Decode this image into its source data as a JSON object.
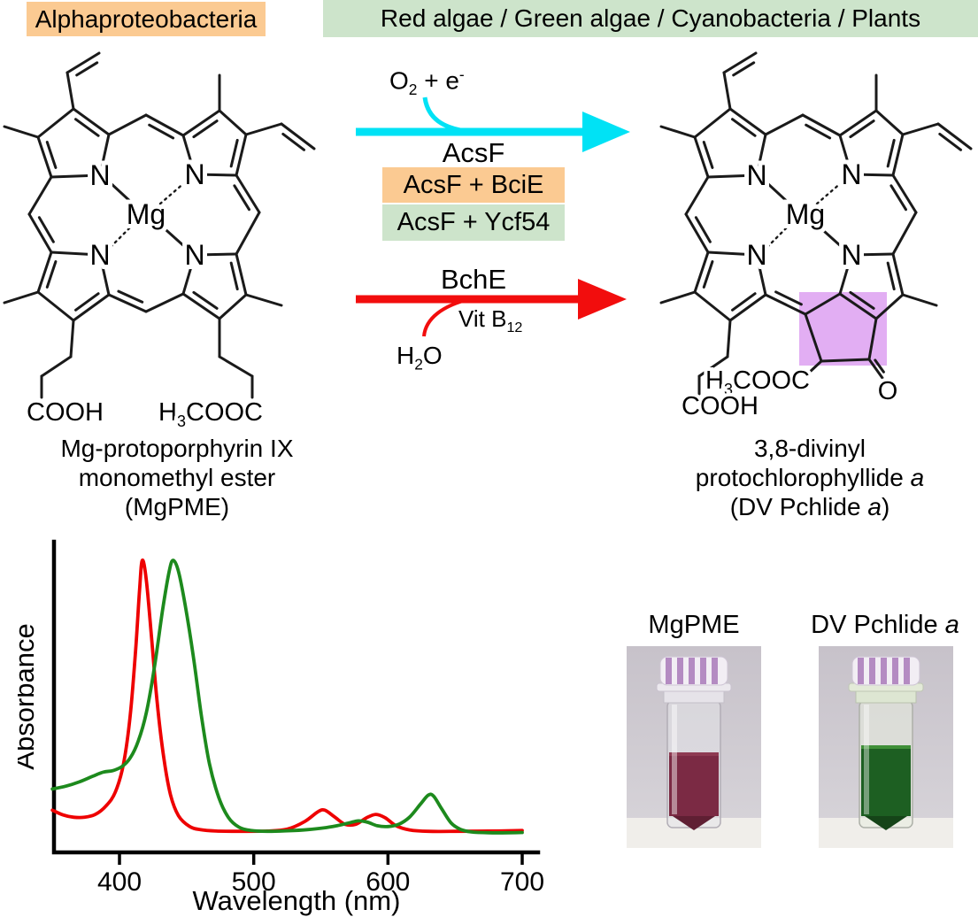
{
  "tags": {
    "alpha": "Alphaproteobacteria",
    "oxygenic": "Red algae / Green algae / Cyanobacteria / Plants"
  },
  "colors": {
    "orange_tag": "#FBCA92",
    "green_tag": "#CDE4CB",
    "cyan_arrow": "#00E2F5",
    "red_arrow": "#F20D0D",
    "purple_highlight": "#E2AEF3",
    "spectrum_red": "#EE0000",
    "spectrum_green": "#1D8A1D",
    "mgpme_liquid": "#7B2A44",
    "pchlide_liquid": "#1D5F22"
  },
  "left_molecule": {
    "mg": "Mg",
    "n": "N",
    "cooh": "COOH",
    "ester": {
      "h": "H",
      "sub": "3",
      "rest": "COOC"
    },
    "caption_lines": [
      "Mg-protoporphyrin IX",
      "monomethyl ester",
      "(MgPME)"
    ]
  },
  "right_molecule": {
    "mg": "Mg",
    "n": "N",
    "cooh": "COOH",
    "ester": {
      "h": "H",
      "sub": "3",
      "rest": "COOC"
    },
    "keto_o": "O",
    "caption": {
      "line1": "3,8-divinyl",
      "line2_text": "protochlorophyllide ",
      "line2_italic": "a",
      "line3_text": "(DV Pchlide ",
      "line3_italic": "a",
      "line3_close": ")"
    }
  },
  "aerobic_route": {
    "enzyme": "AcsF",
    "cofactor": {
      "base": "O",
      "sub": "2",
      "rest": " + e",
      "sup": "-"
    },
    "variants": [
      {
        "label": "AcsF + BciE"
      },
      {
        "label": "AcsF + Ycf54"
      }
    ]
  },
  "anaerobic_route": {
    "enzyme": "BchE",
    "cofactor": {
      "base": "Vit B",
      "sub": "12"
    },
    "byproduct": {
      "base": "H",
      "sub": "2",
      "rest": "O"
    }
  },
  "photos": {
    "left_label": "MgPME",
    "right_label_text": "DV Pchlide ",
    "right_label_italic": "a"
  },
  "chart_data": {
    "type": "line",
    "title": "",
    "xlabel": "Wavelength (nm)",
    "ylabel": "Absorbance",
    "xlim": [
      351,
      712
    ],
    "ylim": [
      0,
      1.08
    ],
    "xticks": [
      400,
      500,
      600,
      700
    ],
    "grid": false,
    "legend": "none",
    "series": [
      {
        "name": "MgPME",
        "color": "#EE0000",
        "peaks_nm": [
          417,
          551,
          591
        ],
        "points": [
          [
            350,
            0.115
          ],
          [
            358,
            0.098
          ],
          [
            366,
            0.09
          ],
          [
            374,
            0.09
          ],
          [
            382,
            0.1
          ],
          [
            390,
            0.13
          ],
          [
            397,
            0.18
          ],
          [
            403,
            0.28
          ],
          [
            408,
            0.45
          ],
          [
            412,
            0.68
          ],
          [
            415,
            0.9
          ],
          [
            417,
            1.0
          ],
          [
            420,
            0.93
          ],
          [
            424,
            0.72
          ],
          [
            428,
            0.5
          ],
          [
            433,
            0.3
          ],
          [
            438,
            0.17
          ],
          [
            444,
            0.095
          ],
          [
            452,
            0.058
          ],
          [
            460,
            0.046
          ],
          [
            472,
            0.041
          ],
          [
            490,
            0.04
          ],
          [
            510,
            0.041
          ],
          [
            525,
            0.048
          ],
          [
            538,
            0.075
          ],
          [
            548,
            0.11
          ],
          [
            553,
            0.115
          ],
          [
            560,
            0.092
          ],
          [
            568,
            0.065
          ],
          [
            576,
            0.065
          ],
          [
            584,
            0.088
          ],
          [
            591,
            0.1
          ],
          [
            598,
            0.088
          ],
          [
            606,
            0.06
          ],
          [
            616,
            0.045
          ],
          [
            630,
            0.04
          ],
          [
            650,
            0.04
          ],
          [
            675,
            0.041
          ],
          [
            700,
            0.043
          ]
        ]
      },
      {
        "name": "DV Pchlide a",
        "color": "#1D8A1D",
        "peaks_nm": [
          439,
          578,
          631
        ],
        "points": [
          [
            350,
            0.19
          ],
          [
            360,
            0.2
          ],
          [
            370,
            0.215
          ],
          [
            380,
            0.235
          ],
          [
            388,
            0.25
          ],
          [
            395,
            0.255
          ],
          [
            402,
            0.27
          ],
          [
            408,
            0.3
          ],
          [
            414,
            0.36
          ],
          [
            420,
            0.46
          ],
          [
            426,
            0.62
          ],
          [
            432,
            0.82
          ],
          [
            437,
            0.96
          ],
          [
            440,
            1.0
          ],
          [
            444,
            0.96
          ],
          [
            449,
            0.84
          ],
          [
            455,
            0.66
          ],
          [
            461,
            0.45
          ],
          [
            467,
            0.28
          ],
          [
            474,
            0.16
          ],
          [
            481,
            0.09
          ],
          [
            489,
            0.055
          ],
          [
            498,
            0.043
          ],
          [
            510,
            0.04
          ],
          [
            525,
            0.042
          ],
          [
            540,
            0.046
          ],
          [
            552,
            0.052
          ],
          [
            562,
            0.06
          ],
          [
            571,
            0.07
          ],
          [
            578,
            0.077
          ],
          [
            585,
            0.072
          ],
          [
            592,
            0.06
          ],
          [
            600,
            0.057
          ],
          [
            608,
            0.065
          ],
          [
            616,
            0.09
          ],
          [
            624,
            0.135
          ],
          [
            630,
            0.168
          ],
          [
            634,
            0.165
          ],
          [
            640,
            0.12
          ],
          [
            647,
            0.07
          ],
          [
            654,
            0.047
          ],
          [
            662,
            0.038
          ],
          [
            675,
            0.035
          ],
          [
            690,
            0.035
          ],
          [
            700,
            0.036
          ]
        ]
      }
    ]
  }
}
